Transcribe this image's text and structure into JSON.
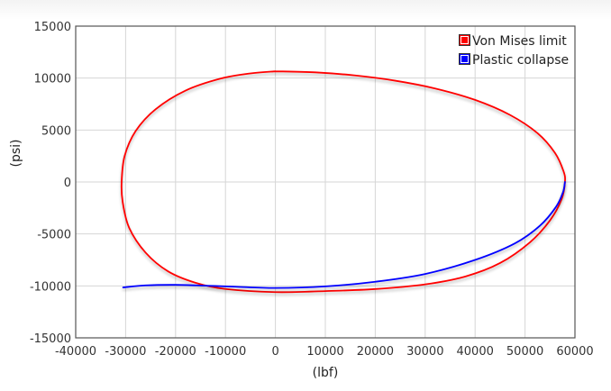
{
  "chart_data": {
    "type": "line",
    "xlabel": "(lbf)",
    "ylabel": "(psi)",
    "xlim": [
      -40000,
      60000
    ],
    "ylim": [
      -15000,
      15000
    ],
    "x_ticks": [
      -40000,
      -30000,
      -20000,
      -10000,
      0,
      10000,
      20000,
      30000,
      40000,
      50000,
      60000
    ],
    "y_ticks": [
      -15000,
      -10000,
      -5000,
      0,
      5000,
      10000,
      15000
    ],
    "grid": true,
    "legend_position": "top-right",
    "series": [
      {
        "name": "Von Mises limit",
        "color": "#ff0000",
        "points": [
          [
            0,
            10650
          ],
          [
            8000,
            10550
          ],
          [
            16000,
            10250
          ],
          [
            24000,
            9750
          ],
          [
            32000,
            9000
          ],
          [
            40000,
            7900
          ],
          [
            47000,
            6450
          ],
          [
            52500,
            4700
          ],
          [
            56000,
            2800
          ],
          [
            57700,
            1050
          ],
          [
            58000,
            0
          ],
          [
            57300,
            -1700
          ],
          [
            55000,
            -3700
          ],
          [
            51000,
            -5800
          ],
          [
            45000,
            -7800
          ],
          [
            38000,
            -9100
          ],
          [
            30000,
            -9850
          ],
          [
            20000,
            -10300
          ],
          [
            10000,
            -10500
          ],
          [
            0,
            -10600
          ],
          [
            -10000,
            -10300
          ],
          [
            -16000,
            -9700
          ],
          [
            -21500,
            -8600
          ],
          [
            -26000,
            -6800
          ],
          [
            -29300,
            -4400
          ],
          [
            -30600,
            -1900
          ],
          [
            -30800,
            0
          ],
          [
            -30200,
            2500
          ],
          [
            -28000,
            4900
          ],
          [
            -24000,
            7000
          ],
          [
            -18000,
            8800
          ],
          [
            -11000,
            9950
          ],
          [
            -5000,
            10450
          ],
          [
            0,
            10650
          ]
        ]
      },
      {
        "name": "Plastic collapse",
        "color": "#0000ff",
        "points": [
          [
            -30500,
            -10150
          ],
          [
            -26000,
            -9950
          ],
          [
            -20000,
            -9900
          ],
          [
            -14000,
            -9980
          ],
          [
            -8000,
            -10080
          ],
          [
            0,
            -10200
          ],
          [
            10000,
            -10050
          ],
          [
            20000,
            -9600
          ],
          [
            30000,
            -8850
          ],
          [
            40000,
            -7500
          ],
          [
            48000,
            -5900
          ],
          [
            53000,
            -4200
          ],
          [
            56200,
            -2400
          ],
          [
            57600,
            -1000
          ],
          [
            58000,
            0
          ]
        ]
      }
    ]
  }
}
